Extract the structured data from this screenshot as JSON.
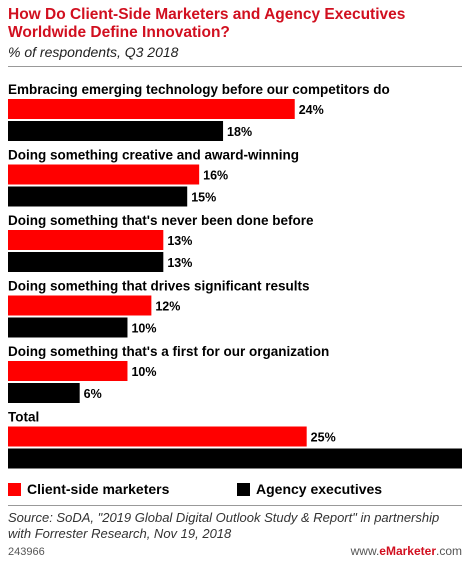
{
  "title": "How Do Client-Side Marketers and Agency Executives Worldwide Define Innovation?",
  "subtitle": "% of respondents, Q3 2018",
  "colors": {
    "client": "#ff0000",
    "agency": "#000000",
    "title": "#d10f1f"
  },
  "legend": {
    "client": "Client-side marketers",
    "agency": "Agency executives"
  },
  "source": "Source: SoDA, \"2019 Global Digital Outlook Study & Report\" in partnership with Forrester Research, Nov 19, 2018",
  "footer": {
    "id": "243966",
    "brand_prefix": "www.",
    "brand_name": "eMarketer",
    "brand_suffix": ".com"
  },
  "chart_data": {
    "type": "bar",
    "orientation": "horizontal",
    "value_suffix": "%",
    "categories": [
      "Embracing emerging technology before our competitors do",
      "Doing something creative and award-winning",
      "Doing something that's never been done before",
      "Doing something that drives significant results",
      "Doing something that's a first for our organization",
      "Total"
    ],
    "series": [
      {
        "name": "Client-side marketers",
        "values": [
          24,
          16,
          13,
          12,
          10,
          25
        ]
      },
      {
        "name": "Agency executives",
        "values": [
          18,
          15,
          13,
          10,
          6,
          38
        ]
      }
    ],
    "xlim": [
      0,
      38
    ]
  }
}
